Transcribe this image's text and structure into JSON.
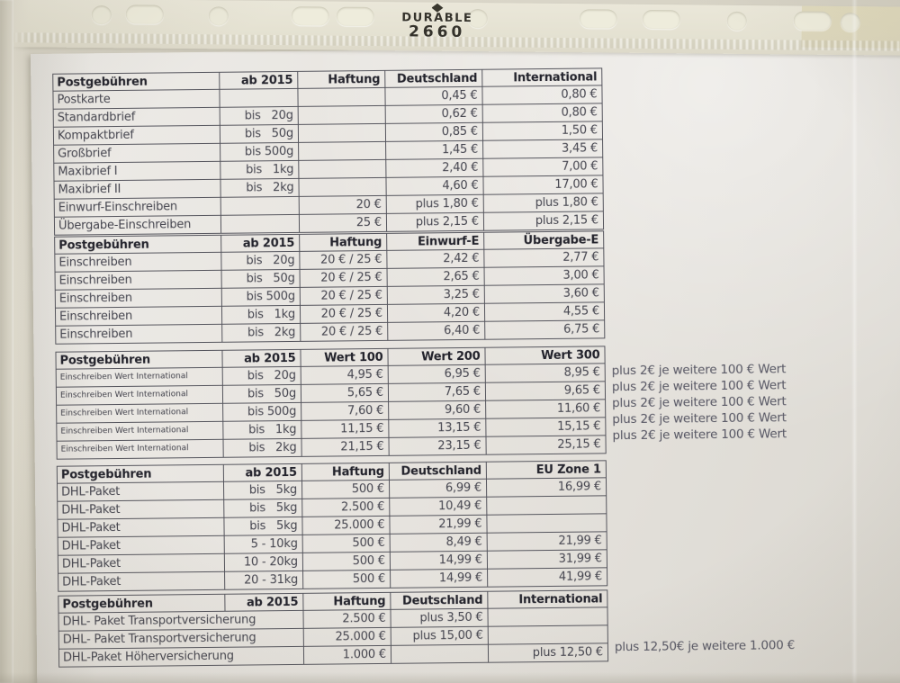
{
  "filing_strip": {
    "brand": "DURABLE",
    "model": "2660"
  },
  "tables": [
    {
      "columns": [
        "Postgebühren",
        "ab 2015",
        "Haftung",
        "Deutschland",
        "International"
      ],
      "rows": [
        [
          "Postkarte",
          "",
          "",
          "0,45 €",
          "0,80 €"
        ],
        [
          "Standardbrief",
          "bis   20g",
          "",
          "0,62 €",
          "0,80 €"
        ],
        [
          "Kompaktbrief",
          "bis   50g",
          "",
          "0,85 €",
          "1,50 €"
        ],
        [
          "Großbrief",
          "bis 500g",
          "",
          "1,45 €",
          "3,45 €"
        ],
        [
          "Maxibrief I",
          "bis   1kg",
          "",
          "2,40 €",
          "7,00 €"
        ],
        [
          "Maxibrief II",
          "bis   2kg",
          "",
          "4,60 €",
          "17,00 €"
        ],
        [
          "Einwurf-Einschreiben",
          "",
          "20 €",
          "plus 1,80 €",
          "plus 1,80 €"
        ],
        [
          "Übergabe-Einschreiben",
          "",
          "25 €",
          "plus 2,15 €",
          "plus 2,15 €"
        ]
      ]
    },
    {
      "columns": [
        "Postgebühren",
        "ab 2015",
        "Haftung",
        "Einwurf-E",
        "Übergabe-E"
      ],
      "rows": [
        [
          "Einschreiben",
          "bis   20g",
          "20 € / 25 €",
          "2,42 €",
          "2,77 €"
        ],
        [
          "Einschreiben",
          "bis   50g",
          "20 € / 25 €",
          "2,65 €",
          "3,00 €"
        ],
        [
          "Einschreiben",
          "bis 500g",
          "20 € / 25 €",
          "3,25 €",
          "3,60 €"
        ],
        [
          "Einschreiben",
          "bis   1kg",
          "20 € / 25 €",
          "4,20 €",
          "4,55 €"
        ],
        [
          "Einschreiben",
          "bis   2kg",
          "20 € / 25 €",
          "6,40 €",
          "6,75 €"
        ]
      ]
    },
    {
      "columns": [
        "Postgebühren",
        "ab 2015",
        "Wert 100",
        "Wert 200",
        "Wert 300"
      ],
      "small_first_col": true,
      "rows": [
        [
          "Einschreiben Wert International",
          "bis   20g",
          "4,95 €",
          "6,95 €",
          "8,95 €"
        ],
        [
          "Einschreiben Wert International",
          "bis   50g",
          "5,65 €",
          "7,65 €",
          "9,65 €"
        ],
        [
          "Einschreiben Wert International",
          "bis 500g",
          "7,60 €",
          "9,60 €",
          "11,60 €"
        ],
        [
          "Einschreiben Wert International",
          "bis   1kg",
          "11,15 €",
          "13,15 €",
          "15,15 €"
        ],
        [
          "Einschreiben Wert International",
          "bis   2kg",
          "21,15 €",
          "23,15 €",
          "25,15 €"
        ]
      ],
      "annotations": [
        "plus 2€ je weitere 100 € Wert",
        "plus 2€ je weitere 100 € Wert",
        "plus 2€ je weitere 100 € Wert",
        "plus 2€ je weitere 100 € Wert",
        "plus 2€ je weitere 100 € Wert"
      ]
    },
    {
      "columns": [
        "Postgebühren",
        "ab 2015",
        "Haftung",
        "Deutschland",
        "EU Zone 1"
      ],
      "rows": [
        [
          "DHL-Paket",
          "bis   5kg",
          "500 €",
          "6,99 €",
          "16,99 €"
        ],
        [
          "DHL-Paket",
          "bis   5kg",
          "2.500 €",
          "10,49 €",
          ""
        ],
        [
          "DHL-Paket",
          "bis   5kg",
          "25.000 €",
          "21,99 €",
          ""
        ],
        [
          "DHL-Paket",
          "5 - 10kg",
          "500 €",
          "8,49 €",
          "21,99 €"
        ],
        [
          "DHL-Paket",
          "10 - 20kg",
          "500 €",
          "14,99 €",
          "31,99 €"
        ],
        [
          "DHL-Paket",
          "20 - 31kg",
          "500 €",
          "14,99 €",
          "41,99 €"
        ]
      ]
    },
    {
      "columns": [
        "Postgebühren",
        "ab 2015",
        "Haftung",
        "Deutschland",
        "International"
      ],
      "body_first_colspan": 2,
      "rows": [
        [
          "DHL- Paket Transportversicherung",
          "2.500 €",
          "plus 3,50 €",
          ""
        ],
        [
          "DHL- Paket Transportversicherung",
          "25.000 €",
          "plus 15,00 €",
          ""
        ],
        [
          "DHL-Paket Höherversicherung",
          "1.000 €",
          "",
          "plus 12,50 €"
        ]
      ],
      "annotations": [
        "",
        "",
        "plus 12,50€ je weitere 1.000 €"
      ]
    }
  ]
}
